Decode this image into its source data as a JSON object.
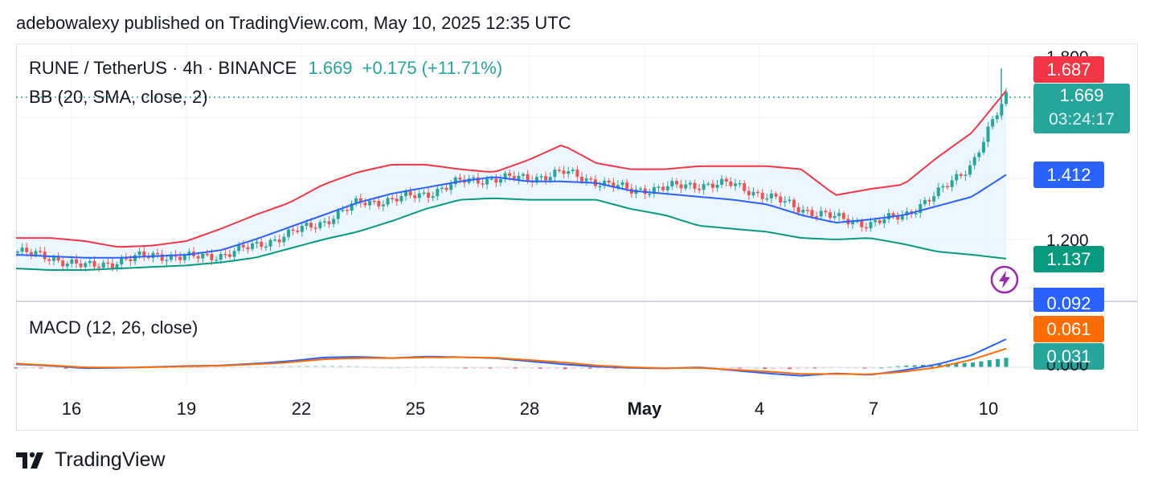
{
  "header": {
    "published": "adebowalexy published on TradingView.com, May 10, 2025 12:35 UTC"
  },
  "legend": {
    "symbol": "RUNE / TetherUS · 4h · BINANCE",
    "last": "1.669",
    "change": "+0.175 (+11.71%)",
    "bb": "BB (20, SMA, close, 2)",
    "macd": "MACD (12, 26, close)"
  },
  "price_axis": {
    "ticks": [
      "1.800",
      "1.200"
    ],
    "labels": {
      "upper_bb": "1.687",
      "last_price": "1.669",
      "countdown": "03:24:17",
      "basis": "1.412",
      "lower_bb": "1.137"
    }
  },
  "macd_axis": {
    "labels": {
      "macd": "0.092",
      "signal": "0.061",
      "hist": "0.031",
      "zero": "0.000"
    }
  },
  "time_axis": [
    "16",
    "19",
    "22",
    "25",
    "28",
    "May",
    "4",
    "7",
    "10"
  ],
  "colors": {
    "up": "#26a69a",
    "down": "#ef5350",
    "upper_band": "#f23645",
    "basis": "#2962ff",
    "lower_band": "#089981",
    "macd": "#2962ff",
    "signal": "#ff6d00",
    "band_fill": "#e3f2fd"
  },
  "footer": {
    "brand": "TradingView"
  },
  "chart_data": {
    "type": "candlestick",
    "title": "RUNE / TetherUS · 4h · BINANCE",
    "last_price": 1.669,
    "change": 0.175,
    "change_pct": 11.71,
    "ylim": [
      1.09,
      1.82
    ],
    "x_ticks": [
      "16",
      "19",
      "22",
      "25",
      "28",
      "May",
      "4",
      "7",
      "10"
    ],
    "series": [
      {
        "name": "BB upper",
        "values": [
          1.205,
          1.205,
          1.195,
          1.175,
          1.18,
          1.195,
          1.235,
          1.28,
          1.32,
          1.38,
          1.42,
          1.445,
          1.445,
          1.43,
          1.42,
          1.46,
          1.51,
          1.45,
          1.43,
          1.43,
          1.44,
          1.44,
          1.44,
          1.43,
          1.345,
          1.365,
          1.38,
          1.47,
          1.55,
          1.687
        ]
      },
      {
        "name": "BB basis",
        "values": [
          1.15,
          1.145,
          1.14,
          1.14,
          1.145,
          1.15,
          1.165,
          1.2,
          1.24,
          1.28,
          1.32,
          1.35,
          1.37,
          1.39,
          1.405,
          1.39,
          1.39,
          1.385,
          1.36,
          1.35,
          1.34,
          1.33,
          1.315,
          1.28,
          1.255,
          1.265,
          1.28,
          1.31,
          1.34,
          1.412
        ]
      },
      {
        "name": "BB lower",
        "values": [
          1.105,
          1.1,
          1.1,
          1.105,
          1.11,
          1.115,
          1.125,
          1.14,
          1.17,
          1.2,
          1.225,
          1.26,
          1.3,
          1.33,
          1.335,
          1.33,
          1.33,
          1.33,
          1.3,
          1.28,
          1.245,
          1.235,
          1.225,
          1.205,
          1.2,
          1.205,
          1.185,
          1.16,
          1.15,
          1.137
        ]
      },
      {
        "name": "Close",
        "values": [
          1.16,
          1.14,
          1.11,
          1.13,
          1.15,
          1.14,
          1.15,
          1.18,
          1.22,
          1.26,
          1.32,
          1.33,
          1.35,
          1.39,
          1.4,
          1.4,
          1.42,
          1.39,
          1.36,
          1.37,
          1.38,
          1.38,
          1.34,
          1.3,
          1.27,
          1.25,
          1.28,
          1.35,
          1.45,
          1.669
        ]
      },
      {
        "name": "MACD",
        "values": [
          0.01,
          0.005,
          -0.003,
          -0.002,
          0.001,
          0.004,
          0.006,
          0.012,
          0.02,
          0.032,
          0.034,
          0.03,
          0.035,
          0.033,
          0.03,
          0.02,
          0.01,
          0.002,
          -0.002,
          -0.004,
          0.0,
          -0.01,
          -0.02,
          -0.028,
          -0.02,
          -0.025,
          -0.01,
          0.01,
          0.04,
          0.092
        ]
      },
      {
        "name": "Signal",
        "values": [
          0.012,
          0.006,
          0.0,
          -0.001,
          0.0,
          0.003,
          0.005,
          0.01,
          0.016,
          0.026,
          0.03,
          0.03,
          0.032,
          0.033,
          0.031,
          0.024,
          0.016,
          0.006,
          0.0,
          -0.003,
          -0.002,
          -0.008,
          -0.014,
          -0.022,
          -0.022,
          -0.023,
          -0.015,
          0.0,
          0.025,
          0.061
        ]
      }
    ]
  }
}
